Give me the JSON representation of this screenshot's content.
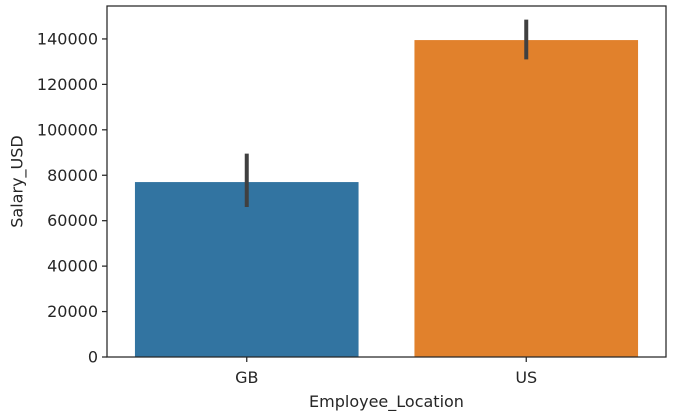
{
  "chart_data": {
    "type": "bar",
    "xlabel": "Employee_Location",
    "ylabel": "Salary_USD",
    "categories": [
      "GB",
      "US"
    ],
    "values": [
      77000,
      139500
    ],
    "error_bars": [
      {
        "low": 66000,
        "high": 89500
      },
      {
        "low": 131000,
        "high": 148500
      }
    ],
    "colors": [
      "#3274a1",
      "#e1812c"
    ],
    "error_bar_color": "#404040",
    "ylim": [
      0,
      154500
    ],
    "yticks": [
      0,
      20000,
      40000,
      60000,
      80000,
      100000,
      120000,
      140000
    ],
    "ytick_labels": [
      "0",
      "20000",
      "40000",
      "60000",
      "80000",
      "100000",
      "120000",
      "140000"
    ],
    "grid": false,
    "legend": "none"
  }
}
